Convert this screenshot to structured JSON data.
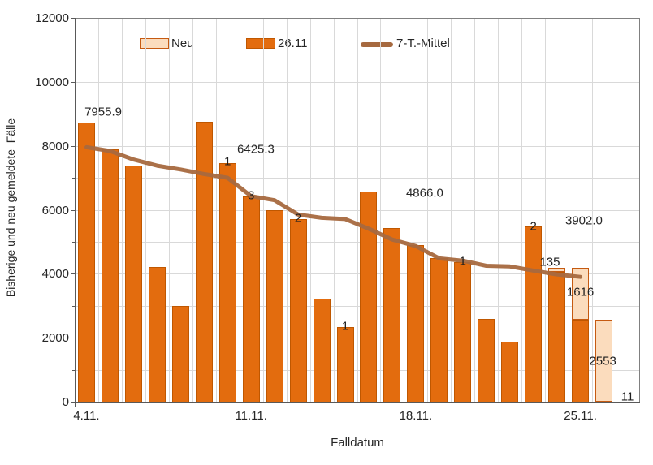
{
  "y_axis": {
    "title": "Bisherige und neu gemeldete  Fälle",
    "tick_labels": [
      "0",
      "2000",
      "4000",
      "6000",
      "8000",
      "10000",
      "12000"
    ]
  },
  "x_axis": {
    "title": "Falldatum",
    "ticks": [
      {
        "label": "4.11.",
        "day": 0
      },
      {
        "label": "11.11.",
        "day": 7
      },
      {
        "label": "18.11.",
        "day": 14
      },
      {
        "label": "25.11.",
        "day": 21
      }
    ]
  },
  "legend": {
    "neu_label": "Neu",
    "reported_label": "26.11",
    "mean_label": "7-T.-Mittel"
  },
  "colors": {
    "bar_dark": "#e36c0e",
    "bar_dark_border": "#bf5700",
    "bar_light": "#fbdcbd",
    "bar_light_border": "#c55a11",
    "mean_line": "#a6693f",
    "gridline": "#d9d9d9"
  },
  "chart_data": {
    "type": "bar",
    "stacked": true,
    "title": "",
    "xlabel": "Falldatum",
    "ylabel": "Bisherige und neu gemeldete  Fälle",
    "ylim": [
      0,
      12000
    ],
    "grid_step": 1000,
    "legend_position": "top",
    "x_description": "daily cases by Falldatum from 4.11. to 27.11.",
    "series": [
      {
        "name": "26.11",
        "role": "bar-base",
        "values": [
          8720,
          7880,
          7370,
          4200,
          3000,
          8740,
          7460,
          6430,
          6000,
          5710,
          3220,
          2340,
          6570,
          5440,
          4900,
          4500,
          4370,
          2590,
          1870,
          5470,
          4055,
          2574,
          0,
          0
        ]
      },
      {
        "name": "Neu",
        "role": "bar-stack",
        "values": [
          0,
          0,
          0,
          0,
          0,
          0,
          1,
          3,
          0,
          2,
          0,
          1,
          0,
          0,
          0,
          0,
          1,
          0,
          0,
          2,
          135,
          1616,
          2553,
          11
        ]
      },
      {
        "name": "7-T.-Mittel",
        "role": "line",
        "values": [
          7956,
          7840,
          7570,
          7380,
          7260,
          7120,
          7000,
          6425,
          6300,
          5850,
          5750,
          5710,
          5410,
          5070,
          4866,
          4480,
          4410,
          4250,
          4230,
          4100,
          3980,
          3902
        ]
      }
    ],
    "bar_labels": [
      {
        "text": "1",
        "day": 6.5,
        "value": 7500
      },
      {
        "text": "3",
        "day": 7.5,
        "value": 6450
      },
      {
        "text": "2",
        "day": 9.5,
        "value": 5740
      },
      {
        "text": "1",
        "day": 11.5,
        "value": 2350
      },
      {
        "text": "1",
        "day": 16.5,
        "value": 4390
      },
      {
        "text": "2",
        "day": 19.5,
        "value": 5470
      },
      {
        "text": "135",
        "day": 20.2,
        "value": 4370
      },
      {
        "text": "1616",
        "day": 21.5,
        "value": 3430
      },
      {
        "text": "2553",
        "day": 22.45,
        "value": 1270
      },
      {
        "text": "11",
        "day": 23.5,
        "value": 140
      }
    ],
    "mean_labels": [
      {
        "text": "7955.9",
        "day": 1.21,
        "value": 9060
      },
      {
        "text": "6425.3",
        "day": 7.7,
        "value": 7890
      },
      {
        "text": "4866.0",
        "day": 14.88,
        "value": 6520
      },
      {
        "text": "3902.0",
        "day": 21.65,
        "value": 5660
      }
    ]
  }
}
